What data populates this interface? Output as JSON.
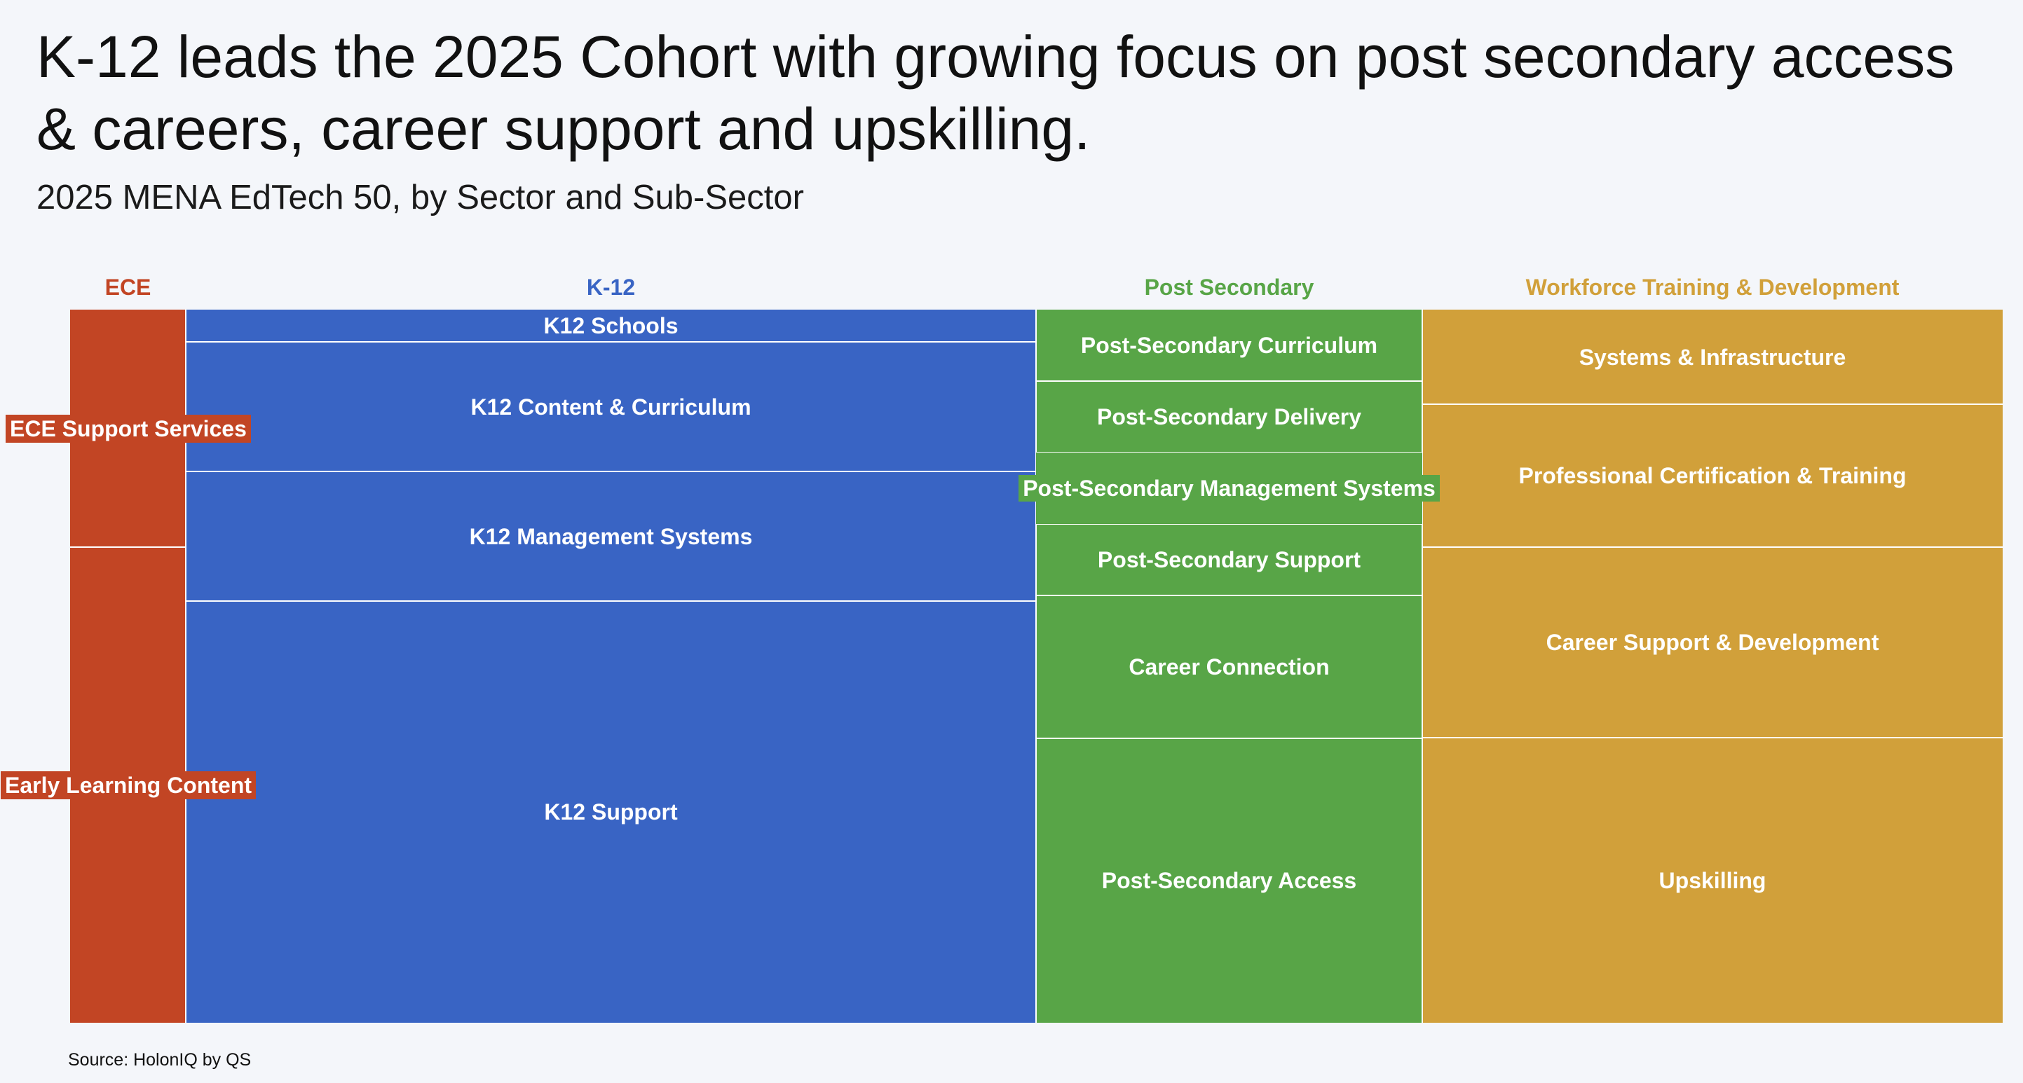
{
  "title": "K-12 leads the 2025 Cohort with growing focus on post secondary access & careers, career support and upskilling.",
  "subtitle": "2025 MENA EdTech 50, by Sector and Sub-Sector",
  "source": "Source: HolonIQ by QS",
  "colors": {
    "ece": "#c24524",
    "k12": "#3964c4",
    "post_secondary": "#58a547",
    "workforce": "#d1a03a",
    "background": "#f4f6fa"
  },
  "chart_data": {
    "type": "marimekko",
    "title": "K-12 leads the 2025 Cohort with growing focus on post secondary access & careers, career support and upskilling.",
    "subtitle": "2025 MENA EdTech 50, by Sector and Sub-Sector",
    "unit": "share of cohort",
    "sectors": [
      {
        "name": "ECE",
        "color": "#c24524",
        "share": 0.06,
        "subsectors": [
          {
            "name": "ECE Support Services",
            "share": 0.333
          },
          {
            "name": "Early Learning Content",
            "share": 0.667
          }
        ]
      },
      {
        "name": "K-12",
        "color": "#3964c4",
        "share": 0.44,
        "subsectors": [
          {
            "name": "K12 Schools",
            "share": 0.045
          },
          {
            "name": "K12 Content & Curriculum",
            "share": 0.182
          },
          {
            "name": "K12 Management Systems",
            "share": 0.182
          },
          {
            "name": "K12 Support",
            "share": 0.591
          }
        ]
      },
      {
        "name": "Post Secondary",
        "color": "#58a547",
        "share": 0.2,
        "subsectors": [
          {
            "name": "Post-Secondary Curriculum",
            "share": 0.1
          },
          {
            "name": "Post-Secondary Delivery",
            "share": 0.1
          },
          {
            "name": "Post-Secondary Management Systems",
            "share": 0.1
          },
          {
            "name": "Post-Secondary Support",
            "share": 0.1
          },
          {
            "name": "Career Connection",
            "share": 0.2
          },
          {
            "name": "Post-Secondary Access",
            "share": 0.4
          }
        ]
      },
      {
        "name": "Workforce Training & Development",
        "color": "#d1a03a",
        "share": 0.3,
        "subsectors": [
          {
            "name": "Systems & Infrastructure",
            "share": 0.133
          },
          {
            "name": "Professional Certification & Training",
            "share": 0.2
          },
          {
            "name": "Career Support & Development",
            "share": 0.267
          },
          {
            "name": "Upskilling",
            "share": 0.4
          }
        ]
      }
    ]
  }
}
